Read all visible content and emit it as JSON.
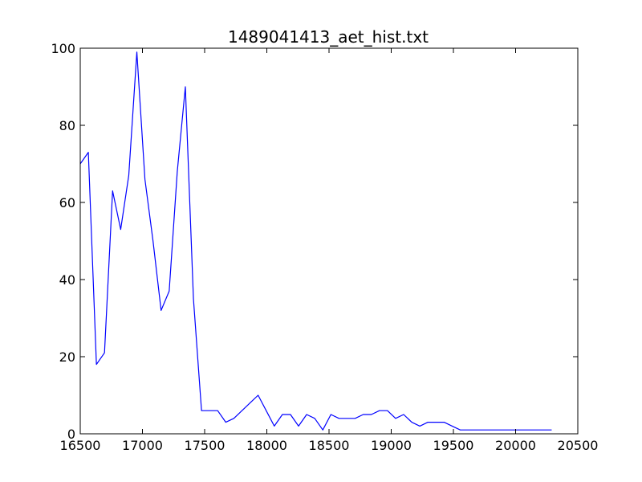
{
  "chart_data": {
    "type": "line",
    "title": "1489041413_aet_hist.txt",
    "xlabel": "",
    "ylabel": "",
    "xlim": [
      16500,
      20500
    ],
    "ylim": [
      0,
      100
    ],
    "xticks": [
      16500,
      17000,
      17500,
      18000,
      18500,
      19000,
      19500,
      20000,
      20500
    ],
    "yticks": [
      0,
      20,
      40,
      60,
      80,
      100
    ],
    "grid": false,
    "series": [
      {
        "color": "#0000ff",
        "x": [
          16500,
          16565,
          16630,
          16695,
          16760,
          16825,
          16890,
          16955,
          17020,
          17085,
          17150,
          17215,
          17280,
          17345,
          17410,
          17475,
          17540,
          17605,
          17670,
          17735,
          17800,
          17865,
          17930,
          17995,
          18060,
          18125,
          18190,
          18255,
          18320,
          18385,
          18450,
          18515,
          18580,
          18645,
          18710,
          18775,
          18840,
          18905,
          18970,
          19035,
          19100,
          19165,
          19230,
          19295,
          19360,
          19425,
          19490,
          19555,
          19620,
          19685,
          19750,
          19815,
          19880,
          19945,
          20010,
          20075,
          20140,
          20205,
          20290
        ],
        "y": [
          70,
          73,
          18,
          21,
          63,
          53,
          67,
          99,
          66,
          50,
          32,
          37,
          68,
          90,
          35,
          6,
          6,
          6,
          3,
          4,
          6,
          8,
          10,
          6,
          2,
          5,
          5,
          2,
          5,
          4,
          1,
          5,
          4,
          4,
          4,
          5,
          5,
          6,
          6,
          4,
          5,
          3,
          2,
          3,
          3,
          3,
          2,
          1,
          1,
          1,
          1,
          1,
          1,
          1,
          1,
          1,
          1,
          1,
          1
        ]
      }
    ]
  }
}
